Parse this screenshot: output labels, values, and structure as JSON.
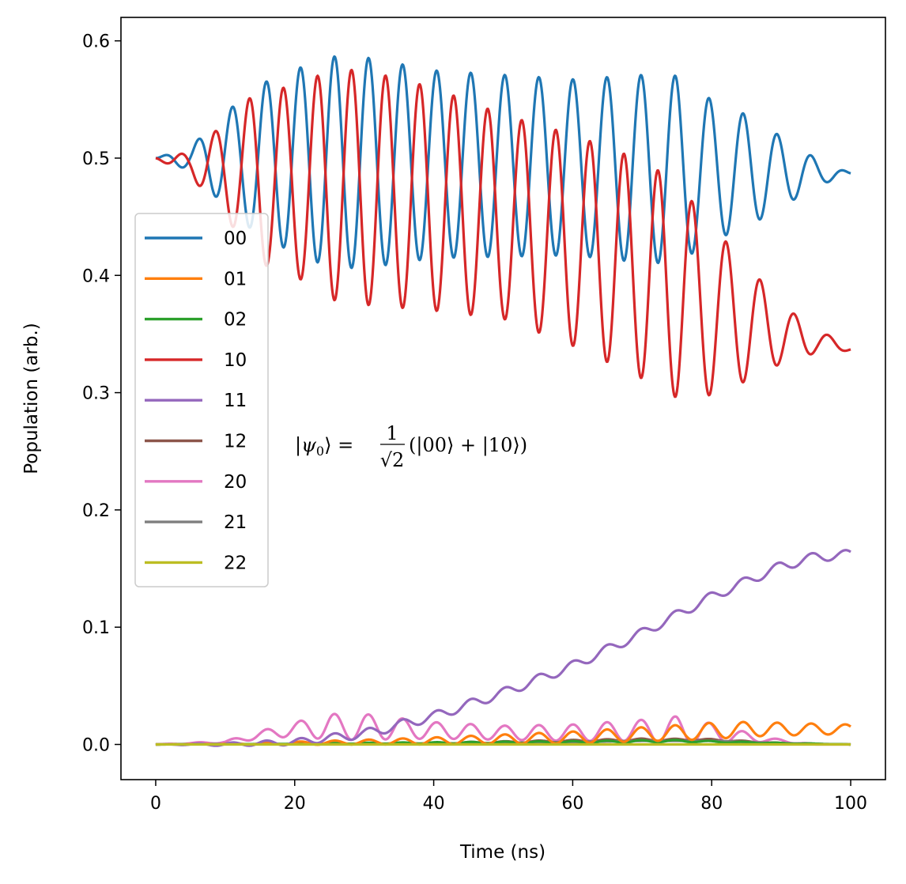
{
  "chart_data": {
    "type": "line",
    "title": "",
    "xlabel": "Time (ns)",
    "ylabel": "Population (arb.)",
    "xlim": [
      -5,
      105
    ],
    "ylim": [
      -0.03,
      0.62
    ],
    "xticks": [
      0,
      20,
      40,
      60,
      80,
      100
    ],
    "yticks": [
      0.0,
      0.1,
      0.2,
      0.3,
      0.4,
      0.5,
      0.6
    ],
    "xtick_labels": [
      "0",
      "20",
      "40",
      "60",
      "80",
      "100"
    ],
    "ytick_labels": [
      "0.0",
      "0.1",
      "0.2",
      "0.3",
      "0.4",
      "0.5",
      "0.6"
    ],
    "legend_position": "center-left",
    "annotation": {
      "text": "|ψ0⟩ = 1/√2 (|00⟩ + |10⟩)",
      "psi": "ψ",
      "subscript": "0",
      "lhs_open": "|",
      "lhs_close": "⟩ =",
      "frac_num": "1",
      "frac_den": "√2",
      "rhs": "(|00⟩ + |10⟩)",
      "x": 20,
      "y": 0.25
    },
    "series": [
      {
        "name": "00",
        "color": "#1f77b4",
        "model": {
          "base_start": 0.5,
          "base_end": 0.487,
          "amp_peaks": [
            [
              0,
              0
            ],
            [
              5,
              0.01
            ],
            [
              10,
              0.04
            ],
            [
              15,
              0.065
            ],
            [
              20,
              0.078
            ],
            [
              25,
              0.09
            ],
            [
              30,
              0.09
            ],
            [
              40,
              0.08
            ],
            [
              60,
              0.075
            ],
            [
              70,
              0.08
            ],
            [
              75,
              0.08
            ],
            [
              80,
              0.06
            ],
            [
              85,
              0.048
            ],
            [
              90,
              0.03
            ],
            [
              95,
              0.012
            ],
            [
              100,
              0
            ]
          ],
          "period": 4.9,
          "phase": 0
        }
      },
      {
        "name": "01",
        "color": "#ff7f0e",
        "model": {
          "kind": "small_osc",
          "points": [
            [
              0,
              0
            ],
            [
              20,
              0.001
            ],
            [
              40,
              0.003
            ],
            [
              60,
              0.006
            ],
            [
              75,
              0.01
            ],
            [
              85,
              0.013
            ],
            [
              100,
              0.013
            ]
          ],
          "amp_points": [
            [
              0,
              0
            ],
            [
              30,
              0.002
            ],
            [
              60,
              0.005
            ],
            [
              80,
              0.007
            ],
            [
              100,
              0.004
            ]
          ],
          "period": 4.9
        }
      },
      {
        "name": "02",
        "color": "#2ca02c",
        "model": {
          "kind": "small_osc",
          "points": [
            [
              0,
              0
            ],
            [
              60,
              0.002
            ],
            [
              75,
              0.003
            ],
            [
              90,
              0.001
            ],
            [
              100,
              0
            ]
          ],
          "amp_points": [
            [
              0,
              0
            ],
            [
              70,
              0.001
            ],
            [
              100,
              0
            ]
          ],
          "period": 4.9
        }
      },
      {
        "name": "10",
        "color": "#d62728",
        "model": {
          "base_start": 0.5,
          "base_end": 0.338,
          "base_points": [
            [
              0,
              0.5
            ],
            [
              20,
              0.48
            ],
            [
              30,
              0.475
            ],
            [
              40,
              0.465
            ],
            [
              50,
              0.45
            ],
            [
              60,
              0.43
            ],
            [
              70,
              0.405
            ],
            [
              80,
              0.37
            ],
            [
              90,
              0.35
            ],
            [
              100,
              0.338
            ]
          ],
          "amp_peaks": [
            [
              0,
              0
            ],
            [
              5,
              0.01
            ],
            [
              10,
              0.04
            ],
            [
              15,
              0.075
            ],
            [
              20,
              0.08
            ],
            [
              25,
              0.098
            ],
            [
              30,
              0.1
            ],
            [
              40,
              0.095
            ],
            [
              50,
              0.087
            ],
            [
              60,
              0.09
            ],
            [
              70,
              0.093
            ],
            [
              75,
              0.092
            ],
            [
              80,
              0.072
            ],
            [
              85,
              0.05
            ],
            [
              90,
              0.025
            ],
            [
              95,
              0.01
            ],
            [
              100,
              0.002
            ]
          ],
          "period": 4.9,
          "phase": 3.14159
        }
      },
      {
        "name": "11",
        "color": "#9467bd",
        "model": {
          "kind": "growth",
          "points": [
            [
              0,
              0
            ],
            [
              10,
              0
            ],
            [
              20,
              0.002
            ],
            [
              30,
              0.009
            ],
            [
              40,
              0.024
            ],
            [
              50,
              0.044
            ],
            [
              60,
              0.067
            ],
            [
              70,
              0.095
            ],
            [
              80,
              0.126
            ],
            [
              90,
              0.152
            ],
            [
              95,
              0.16
            ],
            [
              100,
              0.162
            ]
          ],
          "ripple": 0.004,
          "period": 4.9
        }
      },
      {
        "name": "12",
        "color": "#8c564b",
        "model": {
          "kind": "small_osc",
          "points": [
            [
              0,
              0
            ],
            [
              40,
              0.001
            ],
            [
              70,
              0.004
            ],
            [
              80,
              0.004
            ],
            [
              90,
              0.001
            ],
            [
              100,
              0
            ]
          ],
          "amp_points": [
            [
              0,
              0
            ],
            [
              70,
              0.001
            ],
            [
              100,
              0
            ]
          ],
          "period": 4.9
        }
      },
      {
        "name": "20",
        "color": "#e377c2",
        "model": {
          "kind": "small_osc",
          "points": [
            [
              0,
              0
            ],
            [
              10,
              0.002
            ],
            [
              15,
              0.008
            ],
            [
              20,
              0.013
            ],
            [
              25,
              0.015
            ],
            [
              30,
              0.015
            ],
            [
              40,
              0.012
            ],
            [
              50,
              0.01
            ],
            [
              60,
              0.01
            ],
            [
              70,
              0.012
            ],
            [
              75,
              0.012
            ],
            [
              80,
              0.01
            ],
            [
              88,
              0.004
            ],
            [
              95,
              0
            ],
            [
              100,
              0
            ]
          ],
          "amp_points": [
            [
              0,
              0
            ],
            [
              10,
              0.001
            ],
            [
              20,
              0.006
            ],
            [
              25,
              0.011
            ],
            [
              30,
              0.011
            ],
            [
              40,
              0.007
            ],
            [
              50,
              0.006
            ],
            [
              60,
              0.007
            ],
            [
              70,
              0.009
            ],
            [
              75,
              0.012
            ],
            [
              80,
              0.008
            ],
            [
              88,
              0.002
            ],
            [
              95,
              0
            ],
            [
              100,
              0
            ]
          ],
          "period": 4.9
        }
      },
      {
        "name": "21",
        "color": "#7f7f7f",
        "model": {
          "kind": "small_osc",
          "points": [
            [
              0,
              0
            ],
            [
              50,
              0.001
            ],
            [
              70,
              0.003
            ],
            [
              80,
              0.003
            ],
            [
              90,
              0.001
            ],
            [
              100,
              0
            ]
          ],
          "amp_points": [
            [
              0,
              0
            ],
            [
              100,
              0
            ]
          ],
          "period": 4.9
        }
      },
      {
        "name": "22",
        "color": "#bcbd22",
        "model": {
          "kind": "small_osc",
          "points": [
            [
              0,
              0
            ],
            [
              100,
              0
            ]
          ],
          "amp_points": [
            [
              0,
              0
            ],
            [
              100,
              0
            ]
          ],
          "period": 4.9
        }
      }
    ]
  }
}
